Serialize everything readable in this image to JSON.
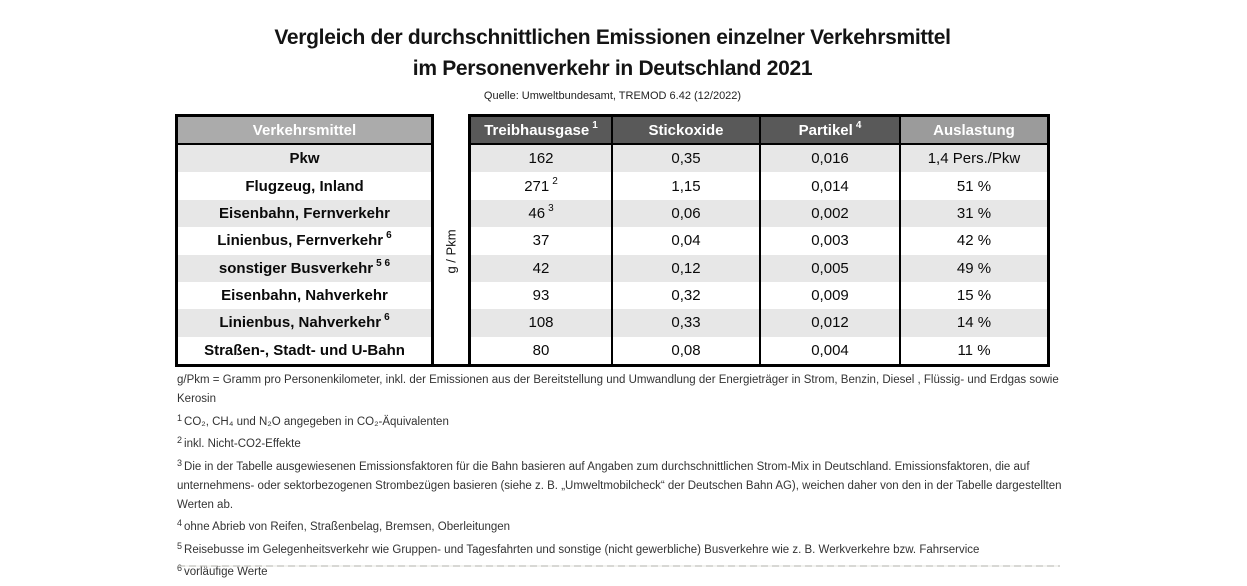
{
  "page": {
    "title_line1": "Vergleich der durchschnittlichen Emissionen einzelner Verkehrsmittel",
    "title_line2": "im Personenverkehr in Deutschland 2021",
    "source": "Quelle: Umweltbundesamt, TREMOD 6.42 (12/2022)"
  },
  "table": {
    "unit_label": "g / Pkm",
    "columns": {
      "mode": {
        "label": "Verkehrsmittel",
        "sup": ""
      },
      "ghg": {
        "label": "Treibhausgase",
        "sup": "1"
      },
      "nox": {
        "label": "Stickoxide",
        "sup": ""
      },
      "pm": {
        "label": "Partikel",
        "sup": "4"
      },
      "load": {
        "label": "Auslastung",
        "sup": ""
      }
    },
    "rows": [
      {
        "name": "Pkw",
        "name_sup": "",
        "ghg": "162",
        "ghg_sup": "",
        "nox": "0,35",
        "pm": "0,016",
        "load": "1,4 Pers./Pkw"
      },
      {
        "name": "Flugzeug, Inland",
        "name_sup": "",
        "ghg": "271",
        "ghg_sup": "2",
        "nox": "1,15",
        "pm": "0,014",
        "load": "51 %"
      },
      {
        "name": "Eisenbahn, Fernverkehr",
        "name_sup": "",
        "ghg": "46",
        "ghg_sup": "3",
        "nox": "0,06",
        "pm": "0,002",
        "load": "31 %"
      },
      {
        "name": "Linienbus, Fernverkehr",
        "name_sup": "6",
        "ghg": "37",
        "ghg_sup": "",
        "nox": "0,04",
        "pm": "0,003",
        "load": "42 %"
      },
      {
        "name": "sonstiger Busverkehr",
        "name_sup": "5 6",
        "ghg": "42",
        "ghg_sup": "",
        "nox": "0,12",
        "pm": "0,005",
        "load": "49 %"
      },
      {
        "name": "Eisenbahn, Nahverkehr",
        "name_sup": "",
        "ghg": "93",
        "ghg_sup": "",
        "nox": "0,32",
        "pm": "0,009",
        "load": "15 %"
      },
      {
        "name": "Linienbus, Nahverkehr",
        "name_sup": "6",
        "ghg": "108",
        "ghg_sup": "",
        "nox": "0,33",
        "pm": "0,012",
        "load": "14 %"
      },
      {
        "name": "Straßen-, Stadt- und U-Bahn",
        "name_sup": "",
        "ghg": "80",
        "ghg_sup": "",
        "nox": "0,08",
        "pm": "0,004",
        "load": "11 %"
      }
    ]
  },
  "footnotes": [
    {
      "sup": "",
      "text": "g/Pkm = Gramm pro Personenkilometer, inkl. der Emissionen aus der Bereitstellung und Umwandlung der Energieträger in Strom, Benzin, Diesel , Flüssig- und Erdgas sowie Kerosin"
    },
    {
      "sup": "1",
      "text": "CO₂, CH₄ und N₂O angegeben in CO₂-Äquivalenten"
    },
    {
      "sup": "2",
      "text": "inkl. Nicht-CO2-Effekte"
    },
    {
      "sup": "3",
      "text": "Die in der Tabelle ausgewiesenen Emissionsfaktoren für die Bahn basieren auf Angaben zum durchschnittlichen Strom-Mix in Deutschland. Emissionsfaktoren, die auf unternehmens- oder sektorbezogenen Strombezügen basieren (siehe z. B. „Umweltmobilcheck“ der Deutschen Bahn AG), weichen daher von den in der Tabelle dargestellten Werten ab."
    },
    {
      "sup": "4",
      "text": "ohne Abrieb von Reifen, Straßenbelag, Bremsen, Oberleitungen"
    },
    {
      "sup": "5",
      "text": "Reisebusse im Gelegenheitsverkehr wie Gruppen- und Tagesfahrten und sonstige (nicht gewerbliche) Busverkehre wie z. B. Werkverkehre bzw. Fahrservice"
    },
    {
      "sup": "6",
      "text": "vorläufige Werte"
    }
  ],
  "colors": {
    "header_mode_bg": "#ababab",
    "header_emission_bg": "#595959",
    "header_load_bg": "#9b9b9b",
    "row_shaded": "#e7e7e7",
    "row_plain": "#ffffff",
    "border": "#000000"
  },
  "chart_data": {
    "type": "table",
    "title": "Vergleich der durchschnittlichen Emissionen einzelner Verkehrsmittel im Personenverkehr in Deutschland 2021",
    "subtitle": "Quelle: Umweltbundesamt, TREMOD 6.42 (12/2022)",
    "unit": "g / Pkm",
    "categories": [
      "Pkw",
      "Flugzeug, Inland",
      "Eisenbahn, Fernverkehr",
      "Linienbus, Fernverkehr",
      "sonstiger Busverkehr",
      "Eisenbahn, Nahverkehr",
      "Linienbus, Nahverkehr",
      "Straßen-, Stadt- und U-Bahn"
    ],
    "series": [
      {
        "name": "Treibhausgase (g/Pkm)",
        "values": [
          162,
          271,
          46,
          37,
          42,
          93,
          108,
          80
        ]
      },
      {
        "name": "Stickoxide (g/Pkm)",
        "values": [
          0.35,
          1.15,
          0.06,
          0.04,
          0.12,
          0.32,
          0.33,
          0.08
        ]
      },
      {
        "name": "Partikel (g/Pkm)",
        "values": [
          0.016,
          0.014,
          0.002,
          0.003,
          0.005,
          0.009,
          0.012,
          0.004
        ]
      },
      {
        "name": "Auslastung",
        "values": [
          "1,4 Pers./Pkw",
          "51 %",
          "31 %",
          "42 %",
          "49 %",
          "15 %",
          "14 %",
          "11 %"
        ]
      }
    ]
  }
}
